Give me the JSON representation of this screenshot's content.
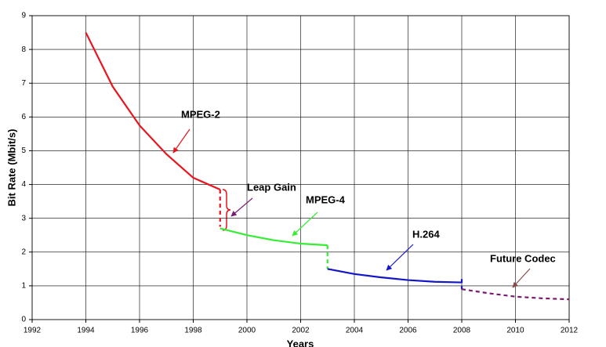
{
  "chart_data": {
    "type": "line",
    "xlabel": "Years",
    "ylabel": "Bit Rate (Mbit/s)",
    "xlim": [
      1992,
      2012
    ],
    "xticks": [
      1992,
      1994,
      1996,
      1998,
      2000,
      2002,
      2004,
      2006,
      2008,
      2010,
      2012
    ],
    "ylim": [
      0,
      9
    ],
    "yticks": [
      0,
      1,
      2,
      3,
      4,
      5,
      6,
      7,
      8,
      9
    ],
    "grid": true,
    "series": [
      {
        "color": "#e8141e",
        "dashed": false,
        "x": [
          1994,
          1995,
          1996,
          1997,
          1998,
          1999
        ],
        "values": [
          8.5,
          6.9,
          5.75,
          4.9,
          4.2,
          3.85
        ]
      },
      {
        "color": "#e8141e",
        "dashed": true,
        "x": [
          1999,
          1999
        ],
        "values": [
          3.85,
          2.75
        ]
      },
      {
        "color": "#33ee33",
        "dashed": false,
        "x": [
          1999,
          2000,
          2001,
          2002,
          2003
        ],
        "values": [
          2.7,
          2.5,
          2.35,
          2.25,
          2.2
        ]
      },
      {
        "color": "#33ee33",
        "dashed": true,
        "x": [
          2003,
          2003
        ],
        "values": [
          2.2,
          1.5
        ]
      },
      {
        "color": "#1515c8",
        "dashed": false,
        "x": [
          2003,
          2004,
          2005,
          2006,
          2007,
          2008
        ],
        "values": [
          1.5,
          1.35,
          1.25,
          1.17,
          1.12,
          1.1
        ]
      },
      {
        "color": "#1515c8",
        "dashed": true,
        "x": [
          2008,
          2008
        ],
        "values": [
          1.2,
          0.9
        ]
      },
      {
        "color": "#7a1a70",
        "dashed": true,
        "x": [
          2008,
          2009,
          2010,
          2011,
          2012
        ],
        "values": [
          0.9,
          0.78,
          0.68,
          0.63,
          0.6
        ]
      }
    ],
    "annotations": [
      "MPEG-2",
      "Leap Gain",
      "MPEG-4",
      "H.264",
      "Future Codec"
    ]
  }
}
